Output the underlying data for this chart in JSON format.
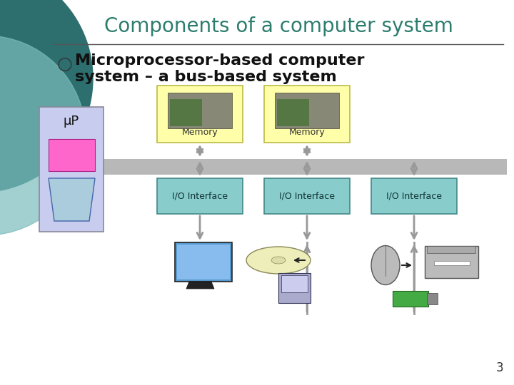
{
  "title": "Components of a computer system",
  "title_color": "#2d7d6e",
  "background_color": "#ffffff",
  "bullet_line1": "Microprocessor-based computer",
  "bullet_line2": "system – a bus-based system",
  "bullet_symbol": "○",
  "slide_number": "3",
  "teal_circle1_color": "#2d6e6e",
  "teal_circle2_color": "#7bbcbc",
  "up_box_color": "#c8ccee",
  "up_label": "μP",
  "pink_rect_color": "#ff66cc",
  "tray_color": "#aaccdd",
  "tray_outline": "#4466aa",
  "bus_color": "#b8b8b8",
  "mem_box_color": "#ffffaa",
  "mem_box_border": "#bbbb44",
  "mem_label": "Memory",
  "io_box_color": "#88cccc",
  "io_box_border": "#448888",
  "io_label": "I/O Interface",
  "arrow_color": "#999999",
  "arrow_lw": 2.0,
  "title_fontsize": 20,
  "bullet_fontsize": 16,
  "up_label_fontsize": 13,
  "mem_label_fontsize": 9,
  "io_label_fontsize": 9,
  "slide_num_fontsize": 12
}
